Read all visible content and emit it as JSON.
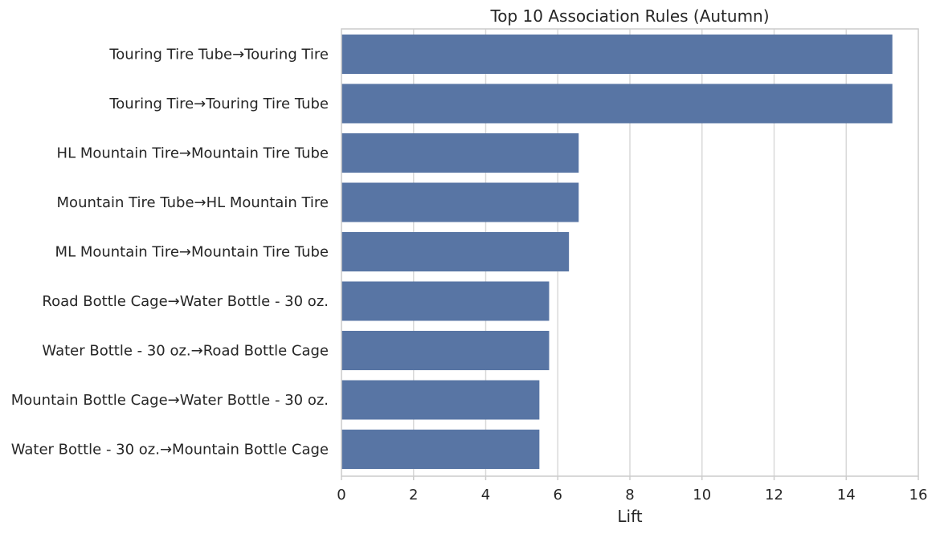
{
  "chart_data": {
    "type": "bar",
    "orientation": "horizontal",
    "title": "Top 10 Association Rules (Autumn)",
    "xlabel": "Lift",
    "ylabel": "",
    "xlim": [
      0,
      16
    ],
    "xticks": [
      0,
      2,
      4,
      6,
      8,
      10,
      12,
      14,
      16
    ],
    "grid": true,
    "bar_color": "#5875a4",
    "categories": [
      "Touring Tire Tube→Touring Tire",
      "Touring Tire→Touring Tire Tube",
      "HL Mountain Tire→Mountain Tire Tube",
      "Mountain Tire Tube→HL Mountain Tire",
      "ML Mountain Tire→Mountain Tire Tube",
      "Road Bottle Cage→Water Bottle - 30 oz.",
      "Water Bottle - 30 oz.→Road Bottle Cage",
      "Mountain Bottle Cage→Water Bottle - 30 oz.",
      "Water Bottle - 30 oz.→Mountain Bottle Cage"
    ],
    "values": [
      15.28,
      15.28,
      6.58,
      6.58,
      6.31,
      5.76,
      5.76,
      5.49,
      5.49
    ]
  }
}
